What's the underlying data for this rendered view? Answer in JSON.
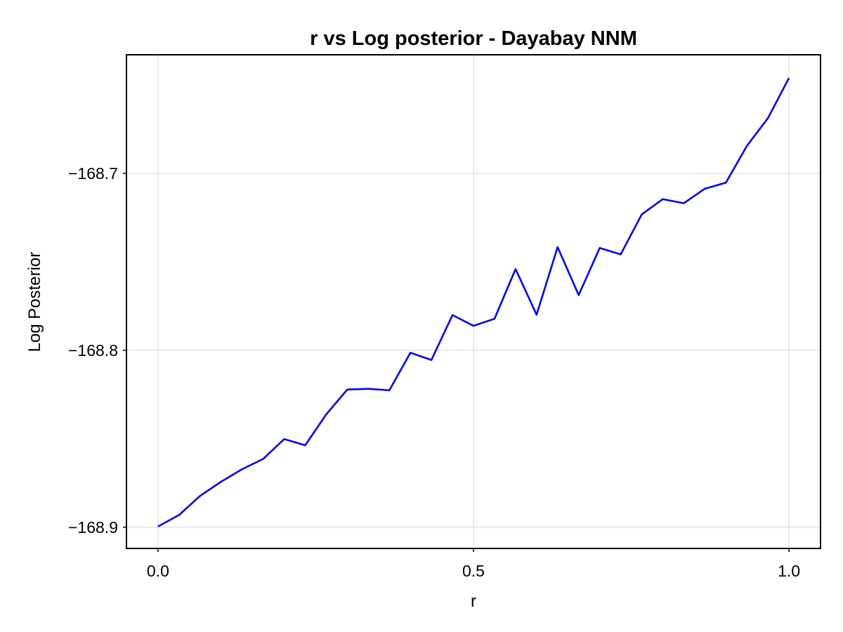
{
  "chart_data": {
    "type": "line",
    "title": "r vs Log posterior - Dayabay NNM",
    "xlabel": "r",
    "ylabel": "Log Posterior",
    "xlim": [
      -0.05,
      1.05
    ],
    "ylim": [
      -168.912,
      -168.633
    ],
    "xticks": [
      0.0,
      0.5,
      1.0
    ],
    "xtick_labels": [
      "0.0",
      "0.5",
      "1.0"
    ],
    "yticks": [
      -168.9,
      -168.8,
      -168.7
    ],
    "ytick_labels": [
      "−168.9",
      "−168.8",
      "−168.7"
    ],
    "grid": true,
    "series": [
      {
        "color": "#0000ff",
        "x": [
          0.0,
          0.0333,
          0.0667,
          0.1,
          0.1333,
          0.1667,
          0.2,
          0.2333,
          0.2667,
          0.3,
          0.3333,
          0.3667,
          0.4,
          0.4333,
          0.4667,
          0.5,
          0.5333,
          0.5667,
          0.6,
          0.6333,
          0.6667,
          0.7,
          0.7333,
          0.7667,
          0.8,
          0.8333,
          0.8667,
          0.9,
          0.9333,
          0.9667,
          1.0
        ],
        "y": [
          -168.8996,
          -168.8931,
          -168.8823,
          -168.8743,
          -168.8672,
          -168.8614,
          -168.8502,
          -168.8537,
          -168.8362,
          -168.8222,
          -168.8218,
          -168.8226,
          -168.8014,
          -168.8055,
          -168.7801,
          -168.7862,
          -168.7822,
          -168.7541,
          -168.7799,
          -168.7417,
          -168.7688,
          -168.7422,
          -168.7458,
          -168.7232,
          -168.7146,
          -168.7169,
          -168.7087,
          -168.7053,
          -168.6845,
          -168.6688,
          -168.6461
        ]
      }
    ]
  }
}
